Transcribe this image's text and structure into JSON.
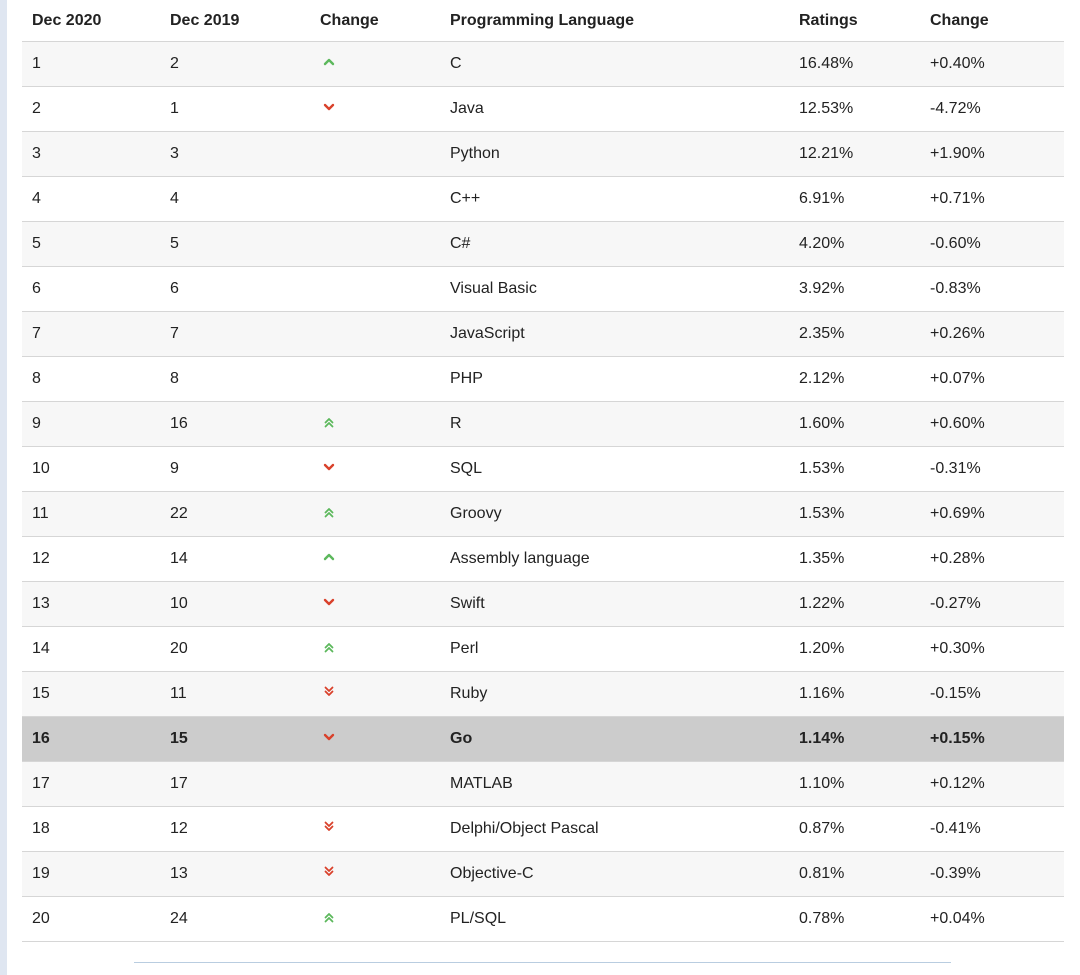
{
  "header": {
    "col1": "Dec 2020",
    "col2": "Dec 2019",
    "col3": "Change",
    "col4": "Programming Language",
    "col5": "Ratings",
    "col6": "Change"
  },
  "colors": {
    "up": "#5cb85c",
    "down": "#d9412b",
    "highlight_row": "#cccccc",
    "stripe": "#f7f7f7"
  },
  "rows": [
    {
      "rank": "1",
      "prev": "2",
      "trend": "up",
      "lang": "C",
      "rating": "16.48%",
      "change": "+0.40%"
    },
    {
      "rank": "2",
      "prev": "1",
      "trend": "down",
      "lang": "Java",
      "rating": "12.53%",
      "change": "-4.72%"
    },
    {
      "rank": "3",
      "prev": "3",
      "trend": "none",
      "lang": "Python",
      "rating": "12.21%",
      "change": "+1.90%"
    },
    {
      "rank": "4",
      "prev": "4",
      "trend": "none",
      "lang": "C++",
      "rating": "6.91%",
      "change": "+0.71%"
    },
    {
      "rank": "5",
      "prev": "5",
      "trend": "none",
      "lang": "C#",
      "rating": "4.20%",
      "change": "-0.60%"
    },
    {
      "rank": "6",
      "prev": "6",
      "trend": "none",
      "lang": "Visual Basic",
      "rating": "3.92%",
      "change": "-0.83%"
    },
    {
      "rank": "7",
      "prev": "7",
      "trend": "none",
      "lang": "JavaScript",
      "rating": "2.35%",
      "change": "+0.26%"
    },
    {
      "rank": "8",
      "prev": "8",
      "trend": "none",
      "lang": "PHP",
      "rating": "2.12%",
      "change": "+0.07%"
    },
    {
      "rank": "9",
      "prev": "16",
      "trend": "up2",
      "lang": "R",
      "rating": "1.60%",
      "change": "+0.60%"
    },
    {
      "rank": "10",
      "prev": "9",
      "trend": "down",
      "lang": "SQL",
      "rating": "1.53%",
      "change": "-0.31%"
    },
    {
      "rank": "11",
      "prev": "22",
      "trend": "up2",
      "lang": "Groovy",
      "rating": "1.53%",
      "change": "+0.69%"
    },
    {
      "rank": "12",
      "prev": "14",
      "trend": "up",
      "lang": "Assembly language",
      "rating": "1.35%",
      "change": "+0.28%"
    },
    {
      "rank": "13",
      "prev": "10",
      "trend": "down",
      "lang": "Swift",
      "rating": "1.22%",
      "change": "-0.27%"
    },
    {
      "rank": "14",
      "prev": "20",
      "trend": "up2",
      "lang": "Perl",
      "rating": "1.20%",
      "change": "+0.30%"
    },
    {
      "rank": "15",
      "prev": "11",
      "trend": "down2",
      "lang": "Ruby",
      "rating": "1.16%",
      "change": "-0.15%"
    },
    {
      "rank": "16",
      "prev": "15",
      "trend": "down",
      "lang": "Go",
      "rating": "1.14%",
      "change": "+0.15%",
      "highlight": true
    },
    {
      "rank": "17",
      "prev": "17",
      "trend": "none",
      "lang": "MATLAB",
      "rating": "1.10%",
      "change": "+0.12%"
    },
    {
      "rank": "18",
      "prev": "12",
      "trend": "down2",
      "lang": "Delphi/Object Pascal",
      "rating": "0.87%",
      "change": "-0.41%"
    },
    {
      "rank": "19",
      "prev": "13",
      "trend": "down2",
      "lang": "Objective-C",
      "rating": "0.81%",
      "change": "-0.39%"
    },
    {
      "rank": "20",
      "prev": "24",
      "trend": "up2",
      "lang": "PL/SQL",
      "rating": "0.78%",
      "change": "+0.04%"
    }
  ]
}
